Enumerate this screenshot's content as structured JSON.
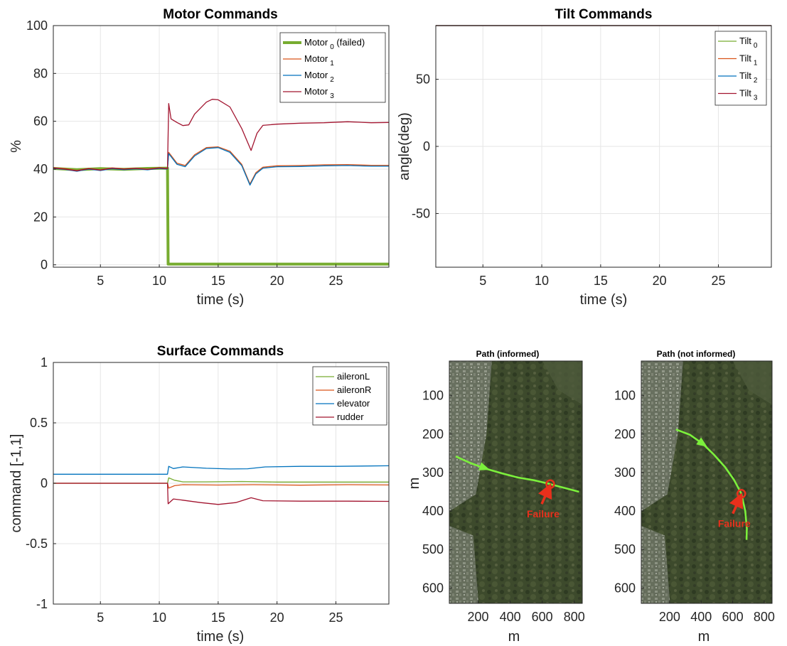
{
  "chart_data": [
    {
      "id": "motor",
      "type": "line",
      "title": "Motor Commands",
      "xlabel": "time (s)",
      "ylabel": "%",
      "xlim": [
        1,
        29.5
      ],
      "ylim": [
        -1,
        100
      ],
      "xticks": [
        5,
        10,
        15,
        20,
        25
      ],
      "yticks": [
        0,
        20,
        40,
        60,
        80,
        100
      ],
      "legend_position": "top-right",
      "series": [
        {
          "name": "Motor",
          "sub": "0",
          "suffix": " (failed)",
          "color": "#77ac30",
          "width": 4,
          "points": [
            [
              1,
              40.3
            ],
            [
              3,
              39.8
            ],
            [
              5,
              40.2
            ],
            [
              7,
              39.9
            ],
            [
              9,
              40.3
            ],
            [
              10.7,
              40.4
            ],
            [
              10.75,
              0.3
            ],
            [
              29.5,
              0.3
            ]
          ]
        },
        {
          "name": "Motor",
          "sub": "1",
          "suffix": "",
          "color": "#d95319",
          "width": 1.3,
          "points": [
            [
              1,
              40.6
            ],
            [
              2,
              40.2
            ],
            [
              3,
              39.4
            ],
            [
              4,
              40.3
            ],
            [
              5,
              39.7
            ],
            [
              6,
              40.5
            ],
            [
              7,
              40.1
            ],
            [
              8,
              40.4
            ],
            [
              9,
              40.0
            ],
            [
              10,
              40.6
            ],
            [
              10.7,
              40.3
            ],
            [
              10.8,
              47
            ],
            [
              11.5,
              42.5
            ],
            [
              12.2,
              41.5
            ],
            [
              13,
              46
            ],
            [
              14,
              49
            ],
            [
              15,
              49.3
            ],
            [
              16,
              47.5
            ],
            [
              17,
              42
            ],
            [
              17.7,
              33.8
            ],
            [
              18.2,
              38.5
            ],
            [
              18.8,
              40.8
            ],
            [
              20,
              41.4
            ],
            [
              22,
              41.5
            ],
            [
              24,
              41.8
            ],
            [
              26,
              41.9
            ],
            [
              28,
              41.6
            ],
            [
              29.5,
              41.6
            ]
          ]
        },
        {
          "name": "Motor",
          "sub": "2",
          "suffix": "",
          "color": "#0072bd",
          "width": 1.3,
          "points": [
            [
              1,
              40.3
            ],
            [
              2,
              39.9
            ],
            [
              3,
              39.1
            ],
            [
              4,
              40.0
            ],
            [
              5,
              39.4
            ],
            [
              6,
              40.2
            ],
            [
              7,
              39.8
            ],
            [
              8,
              40.1
            ],
            [
              9,
              39.7
            ],
            [
              10,
              40.3
            ],
            [
              10.7,
              40.0
            ],
            [
              10.8,
              46.5
            ],
            [
              11.5,
              42
            ],
            [
              12.2,
              41
            ],
            [
              13,
              45.5
            ],
            [
              14,
              48.6
            ],
            [
              15,
              49
            ],
            [
              16,
              47
            ],
            [
              17,
              41.5
            ],
            [
              17.7,
              33.3
            ],
            [
              18.2,
              38
            ],
            [
              18.8,
              40.4
            ],
            [
              20,
              41
            ],
            [
              22,
              41.1
            ],
            [
              24,
              41.4
            ],
            [
              26,
              41.5
            ],
            [
              28,
              41.2
            ],
            [
              29.5,
              41.2
            ]
          ]
        },
        {
          "name": "Motor",
          "sub": "3",
          "suffix": "",
          "color": "#a2142f",
          "width": 1.3,
          "points": [
            [
              1,
              40.5
            ],
            [
              2,
              40.0
            ],
            [
              3,
              39.3
            ],
            [
              4,
              40.2
            ],
            [
              5,
              39.6
            ],
            [
              6,
              40.4
            ],
            [
              7,
              40.0
            ],
            [
              8,
              40.3
            ],
            [
              9,
              39.9
            ],
            [
              10,
              40.5
            ],
            [
              10.7,
              40.2
            ],
            [
              10.8,
              67.4
            ],
            [
              11,
              61
            ],
            [
              11.5,
              59.5
            ],
            [
              12,
              58.2
            ],
            [
              12.5,
              58.5
            ],
            [
              13,
              63
            ],
            [
              14,
              68
            ],
            [
              14.5,
              69.2
            ],
            [
              15,
              69
            ],
            [
              16,
              66
            ],
            [
              17,
              57
            ],
            [
              17.8,
              47.8
            ],
            [
              18.3,
              55
            ],
            [
              18.8,
              58.3
            ],
            [
              20,
              58.8
            ],
            [
              22,
              59.2
            ],
            [
              24,
              59.4
            ],
            [
              26,
              59.8
            ],
            [
              28,
              59.4
            ],
            [
              29.5,
              59.5
            ]
          ]
        }
      ]
    },
    {
      "id": "tilt",
      "type": "line",
      "title": "Tilt Commands",
      "xlabel": "time (s)",
      "ylabel": "angle(deg)",
      "xlim": [
        1,
        29.5
      ],
      "ylim": [
        -90,
        90
      ],
      "xticks": [
        5,
        10,
        15,
        20,
        25
      ],
      "yticks": [
        -50,
        0,
        50
      ],
      "legend_position": "top-right",
      "series": [
        {
          "name": "Tilt",
          "sub": "0",
          "color": "#77ac30",
          "value": 90
        },
        {
          "name": "Tilt",
          "sub": "1",
          "color": "#d95319",
          "value": 90
        },
        {
          "name": "Tilt",
          "sub": "2",
          "color": "#0072bd",
          "value": 90
        },
        {
          "name": "Tilt",
          "sub": "3",
          "color": "#a2142f",
          "value": 90
        }
      ]
    },
    {
      "id": "surface",
      "type": "line",
      "title": "Surface Commands",
      "xlabel": "time (s)",
      "ylabel": "command [-1,1]",
      "xlim": [
        1,
        29.5
      ],
      "ylim": [
        -1,
        1
      ],
      "xticks": [
        5,
        10,
        15,
        20,
        25
      ],
      "yticks": [
        -1,
        -0.5,
        0,
        0.5,
        1
      ],
      "ytick_labels": [
        "-1",
        "-0.5",
        "0",
        "0.5",
        "1"
      ],
      "legend_position": "top-right",
      "series": [
        {
          "name": "aileronL",
          "color": "#77ac30",
          "points": [
            [
              1,
              0
            ],
            [
              10.7,
              0
            ],
            [
              10.8,
              0.045
            ],
            [
              11.3,
              0.025
            ],
            [
              12,
              0.012
            ],
            [
              14,
              0.012
            ],
            [
              17,
              0.015
            ],
            [
              20,
              0.01
            ],
            [
              25,
              0.01
            ],
            [
              29.5,
              0.01
            ]
          ]
        },
        {
          "name": "aileronR",
          "color": "#d95319",
          "points": [
            [
              1,
              0
            ],
            [
              10.7,
              0
            ],
            [
              10.8,
              -0.04
            ],
            [
              11.3,
              -0.02
            ],
            [
              12,
              -0.012
            ],
            [
              15,
              -0.015
            ],
            [
              18,
              -0.012
            ],
            [
              22,
              -0.016
            ],
            [
              26,
              -0.012
            ],
            [
              29.5,
              -0.014
            ]
          ]
        },
        {
          "name": "elevator",
          "color": "#0072bd",
          "points": [
            [
              1,
              0.075
            ],
            [
              10.7,
              0.075
            ],
            [
              10.8,
              0.14
            ],
            [
              11.2,
              0.122
            ],
            [
              12,
              0.135
            ],
            [
              14,
              0.124
            ],
            [
              16,
              0.118
            ],
            [
              17.5,
              0.12
            ],
            [
              19,
              0.135
            ],
            [
              22,
              0.14
            ],
            [
              25,
              0.14
            ],
            [
              29.5,
              0.145
            ]
          ]
        },
        {
          "name": "rudder",
          "color": "#a2142f",
          "points": [
            [
              1,
              0
            ],
            [
              10.7,
              0
            ],
            [
              10.75,
              -0.17
            ],
            [
              11.2,
              -0.13
            ],
            [
              12,
              -0.14
            ],
            [
              13.5,
              -0.16
            ],
            [
              15,
              -0.175
            ],
            [
              16.5,
              -0.16
            ],
            [
              17.8,
              -0.12
            ],
            [
              18.8,
              -0.145
            ],
            [
              22,
              -0.148
            ],
            [
              26,
              -0.148
            ],
            [
              29.5,
              -0.15
            ]
          ]
        }
      ]
    },
    {
      "id": "path_informed",
      "type": "scatter",
      "title": "Path (informed)",
      "xlabel": "m",
      "ylabel": "m",
      "xlim": [
        20,
        850
      ],
      "ylim": [
        640,
        10
      ],
      "xticks": [
        200,
        400,
        600,
        800
      ],
      "yticks": [
        100,
        200,
        300,
        400,
        500,
        600
      ],
      "annotation": "Failure",
      "failure_point": [
        650,
        330
      ],
      "path": [
        [
          60,
          258
        ],
        [
          150,
          275
        ],
        [
          250,
          290
        ],
        [
          350,
          302
        ],
        [
          450,
          313
        ],
        [
          550,
          320
        ],
        [
          650,
          330
        ],
        [
          740,
          340
        ],
        [
          830,
          350
        ]
      ],
      "arrow_at": [
        240,
        288
      ]
    },
    {
      "id": "path_not_informed",
      "type": "scatter",
      "title": "Path (not informed)",
      "xlabel": "m",
      "ylabel": "m",
      "xlim": [
        20,
        850
      ],
      "ylim": [
        640,
        10
      ],
      "xticks": [
        200,
        400,
        600,
        800
      ],
      "yticks": [
        100,
        200,
        300,
        400,
        500,
        600
      ],
      "annotation": "Failure",
      "failure_point": [
        655,
        355
      ],
      "path": [
        [
          240,
          188
        ],
        [
          330,
          202
        ],
        [
          410,
          225
        ],
        [
          480,
          253
        ],
        [
          550,
          285
        ],
        [
          610,
          320
        ],
        [
          655,
          355
        ],
        [
          680,
          400
        ],
        [
          690,
          445
        ],
        [
          688,
          475
        ]
      ],
      "arrow_at": [
        410,
        225
      ]
    }
  ]
}
